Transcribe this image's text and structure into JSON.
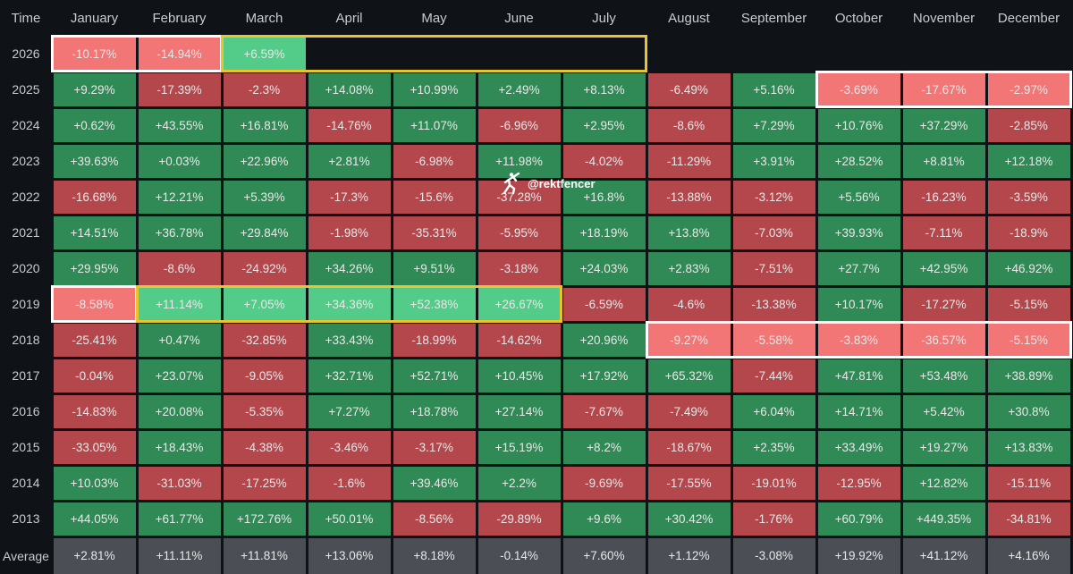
{
  "header": [
    "Time",
    "January",
    "February",
    "March",
    "April",
    "May",
    "June",
    "July",
    "August",
    "September",
    "October",
    "November",
    "December"
  ],
  "rows": [
    [
      "2026",
      "-10.17%",
      "-14.94%",
      "+6.59%"
    ],
    [
      "2025",
      "+9.29%",
      "-17.39%",
      "-2.3%",
      "+14.08%",
      "+10.99%",
      "+2.49%",
      "+8.13%",
      "-6.49%",
      "+5.16%",
      "-3.69%",
      "-17.67%",
      "-2.97%"
    ],
    [
      "2024",
      "+0.62%",
      "+43.55%",
      "+16.81%",
      "-14.76%",
      "+11.07%",
      "-6.96%",
      "+2.95%",
      "-8.6%",
      "+7.29%",
      "+10.76%",
      "+37.29%",
      "-2.85%"
    ],
    [
      "2023",
      "+39.63%",
      "+0.03%",
      "+22.96%",
      "+2.81%",
      "-6.98%",
      "+11.98%",
      "-4.02%",
      "-11.29%",
      "+3.91%",
      "+28.52%",
      "+8.81%",
      "+12.18%"
    ],
    [
      "2022",
      "-16.68%",
      "+12.21%",
      "+5.39%",
      "-17.3%",
      "-15.6%",
      "-37.28%",
      "+16.8%",
      "-13.88%",
      "-3.12%",
      "+5.56%",
      "-16.23%",
      "-3.59%"
    ],
    [
      "2021",
      "+14.51%",
      "+36.78%",
      "+29.84%",
      "-1.98%",
      "-35.31%",
      "-5.95%",
      "+18.19%",
      "+13.8%",
      "-7.03%",
      "+39.93%",
      "-7.11%",
      "-18.9%"
    ],
    [
      "2020",
      "+29.95%",
      "-8.6%",
      "-24.92%",
      "+34.26%",
      "+9.51%",
      "-3.18%",
      "+24.03%",
      "+2.83%",
      "-7.51%",
      "+27.7%",
      "+42.95%",
      "+46.92%"
    ],
    [
      "2019",
      "-8.58%",
      "+11.14%",
      "+7.05%",
      "+34.36%",
      "+52.38%",
      "+26.67%",
      "-6.59%",
      "-4.6%",
      "-13.38%",
      "+10.17%",
      "-17.27%",
      "-5.15%"
    ],
    [
      "2018",
      "-25.41%",
      "+0.47%",
      "-32.85%",
      "+33.43%",
      "-18.99%",
      "-14.62%",
      "+20.96%",
      "-9.27%",
      "-5.58%",
      "-3.83%",
      "-36.57%",
      "-5.15%"
    ],
    [
      "2017",
      "-0.04%",
      "+23.07%",
      "-9.05%",
      "+32.71%",
      "+52.71%",
      "+10.45%",
      "+17.92%",
      "+65.32%",
      "-7.44%",
      "+47.81%",
      "+53.48%",
      "+38.89%"
    ],
    [
      "2016",
      "-14.83%",
      "+20.08%",
      "-5.35%",
      "+7.27%",
      "+18.78%",
      "+27.14%",
      "-7.67%",
      "-7.49%",
      "+6.04%",
      "+14.71%",
      "+5.42%",
      "+30.8%"
    ],
    [
      "2015",
      "-33.05%",
      "+18.43%",
      "-4.38%",
      "-3.46%",
      "-3.17%",
      "+15.19%",
      "+8.2%",
      "-18.67%",
      "+2.35%",
      "+33.49%",
      "+19.27%",
      "+13.83%"
    ],
    [
      "2014",
      "+10.03%",
      "-31.03%",
      "-17.25%",
      "-1.6%",
      "+39.46%",
      "+2.2%",
      "-9.69%",
      "-17.55%",
      "-19.01%",
      "-12.95%",
      "+12.82%",
      "-15.11%"
    ],
    [
      "2013",
      "+44.05%",
      "+61.77%",
      "+172.76%",
      "+50.01%",
      "-8.56%",
      "-29.89%",
      "+9.6%",
      "+30.42%",
      "-1.76%",
      "+60.79%",
      "+449.35%",
      "-34.81%"
    ]
  ],
  "average": [
    "Average",
    "+2.81%",
    "+11.11%",
    "+11.81%",
    "+13.06%",
    "+8.18%",
    "-0.14%",
    "+7.60%",
    "+1.12%",
    "-3.08%",
    "+19.92%",
    "+41.12%",
    "+4.16%"
  ],
  "watermark": "@rektfencer"
}
